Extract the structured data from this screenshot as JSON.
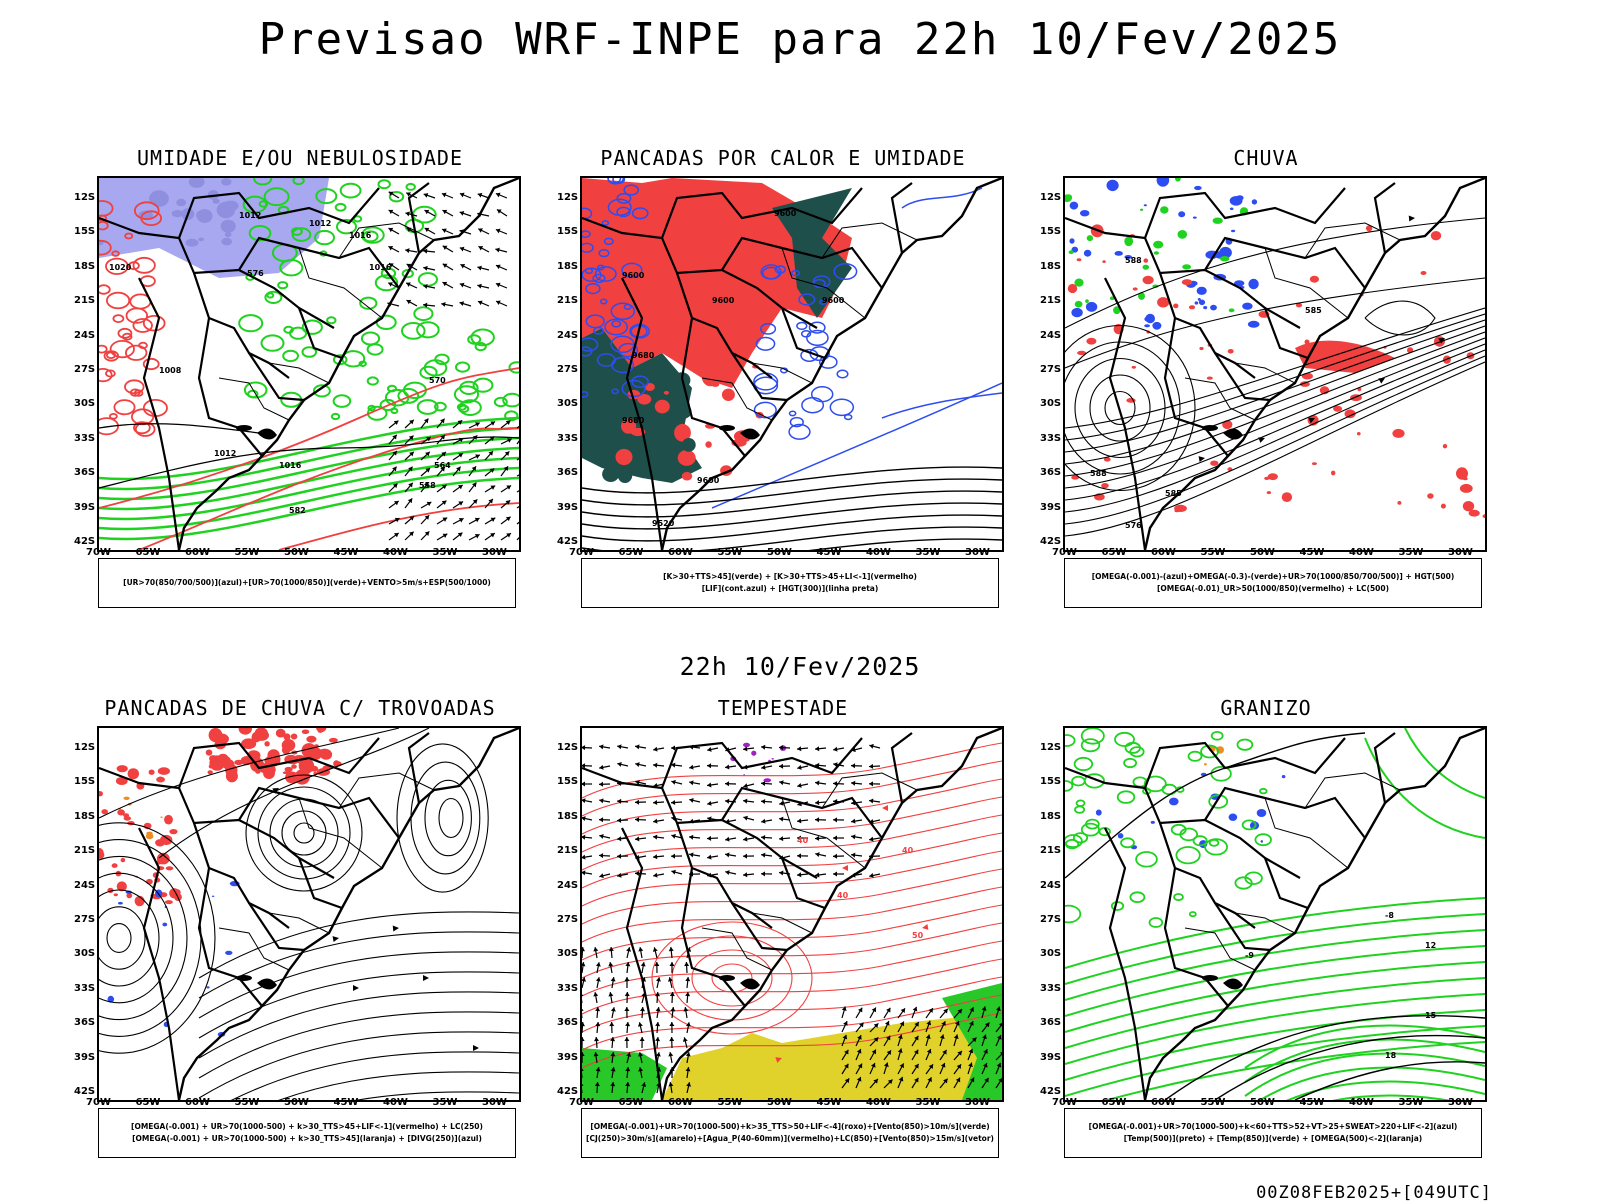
{
  "header": {
    "title": "Previsao WRF-INPE  para 22h 10/Fev/2025",
    "subtitle": "22h 10/Fev/2025",
    "footer": "00Z08FEB2025+[049UTC]"
  },
  "axes": {
    "lat_labels": [
      "12S",
      "15S",
      "18S",
      "21S",
      "24S",
      "27S",
      "30S",
      "33S",
      "36S",
      "39S",
      "42S"
    ],
    "lon_labels": [
      "70W",
      "65W",
      "60W",
      "55W",
      "50W",
      "45W",
      "40W",
      "35W",
      "30W"
    ]
  },
  "colors": {
    "blue_fill": "#a8a8f0",
    "green": "#1fd21f",
    "red": "#f04040",
    "dark_teal": "#1f4f4a",
    "blue_line": "#2d4df0",
    "yellow": "#e0d22a",
    "orange": "#f08c1e",
    "purple": "#a020c0"
  },
  "panels": [
    {
      "title": "UMIDADE E/OU NEBULOSIDADE",
      "legend": [
        "[UR>70(850/700/500)](azul)+[UR>70(1000/850)](verde)+VENTO>5m/s+ESP(500/1000)"
      ],
      "contour_labels": [
        "1012",
        "1012",
        "1016",
        "1020",
        "1016",
        "1008",
        "1012",
        "1016",
        "564",
        "576",
        "570",
        "558",
        "582"
      ]
    },
    {
      "title": "PANCADAS POR CALOR E UMIDADE",
      "legend": [
        "[K>30+TTS>45](verde) + [K>30+TTS>45+LI<-1](vermelho)",
        "[LIF](cont.azul) + [HGT(300)](linha preta)"
      ],
      "contour_labels": [
        "9600",
        "9600",
        "9600",
        "9600",
        "9680",
        "9680",
        "9600",
        "9520"
      ]
    },
    {
      "title": "CHUVA",
      "legend": [
        "[OMEGA(-0.001)-(azul)+OMEGA(-0.3)-(verde)+UR>70(1000/850/700/500)] + HGT(500)",
        "[OMEGA(-0.01)_UR>50(1000/850)(vermelho) + LC(500)"
      ],
      "contour_labels": [
        "588",
        "585",
        "588",
        "576",
        "585"
      ]
    },
    {
      "title": "PANCADAS DE CHUVA C/ TROVOADAS",
      "legend": [
        "[OMEGA(-0.001) + UR>70(1000-500) + k>30_TTS>45+LIF<-1](vermelho) + LC(250)",
        "[OMEGA(-0.001) + UR>70(1000-500) + k>30_TTS>45](laranja) + [DIVG(250)](azul)"
      ],
      "contour_labels": []
    },
    {
      "title": "TEMPESTADE",
      "legend": [
        "[OMEGA(-0.001)+UR>70(1000-500)+k>35_TTS>50+LIF<-4](roxo)+[Vento(850)>10m/s](verde)",
        "[CJ(250)>30m/s](amarelo)+[Agua_P(40-60mm)](vermelho)+LC(850)+[Vento(850)>15m/s](vetor)"
      ],
      "contour_labels": [
        "40",
        "40",
        "40",
        "50"
      ]
    },
    {
      "title": "GRANIZO",
      "legend": [
        "[OMEGA(-0.001)+UR>70(1000-500)+k<60+TTS>52+VT>25+SWEAT>220+LIF<-2](azul)",
        "[Temp(500)](preto) + [Temp(850)](verde) + [OMEGA(500)<-2](laranja)"
      ],
      "contour_labels": [
        "-8",
        "12",
        "15",
        "18",
        "-9"
      ]
    }
  ]
}
